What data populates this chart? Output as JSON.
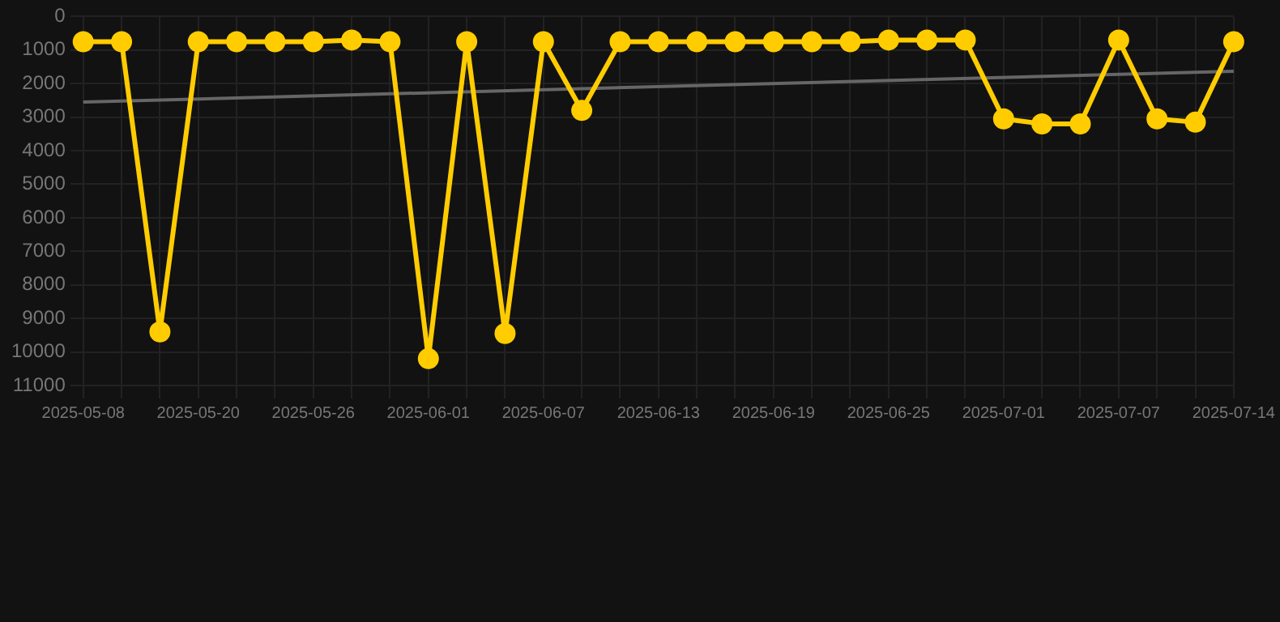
{
  "chart_data": {
    "type": "line",
    "categories": [
      "2025-05-08",
      null,
      null,
      "2025-05-20",
      null,
      null,
      "2025-05-26",
      null,
      null,
      "2025-06-01",
      null,
      null,
      "2025-06-07",
      null,
      null,
      "2025-06-13",
      null,
      null,
      "2025-06-19",
      null,
      null,
      "2025-06-25",
      null,
      null,
      "2025-07-01",
      null,
      null,
      "2025-07-07",
      null,
      null,
      "2025-07-14"
    ],
    "series": [
      {
        "color": "#ffcc00",
        "values": [
          750,
          750,
          9400,
          750,
          750,
          750,
          750,
          700,
          750,
          10200,
          750,
          9450,
          750,
          2800,
          750,
          750,
          750,
          750,
          750,
          750,
          750,
          700,
          700,
          700,
          3050,
          3200,
          3200,
          700,
          3050,
          3150,
          750
        ]
      },
      {
        "color": "#666666",
        "marker": "none",
        "values": [
          2550,
          null,
          null,
          null,
          null,
          null,
          null,
          null,
          null,
          null,
          null,
          null,
          null,
          null,
          null,
          null,
          null,
          null,
          null,
          null,
          null,
          null,
          null,
          null,
          null,
          null,
          null,
          null,
          null,
          null,
          1630
        ]
      }
    ],
    "ylim": [
      11000,
      0
    ],
    "yticks": [
      0,
      1000,
      2000,
      3000,
      4000,
      5000,
      6000,
      7000,
      8000,
      9000,
      10000,
      11000
    ],
    "grid": true,
    "marker": "circle",
    "line_style": "solid"
  }
}
